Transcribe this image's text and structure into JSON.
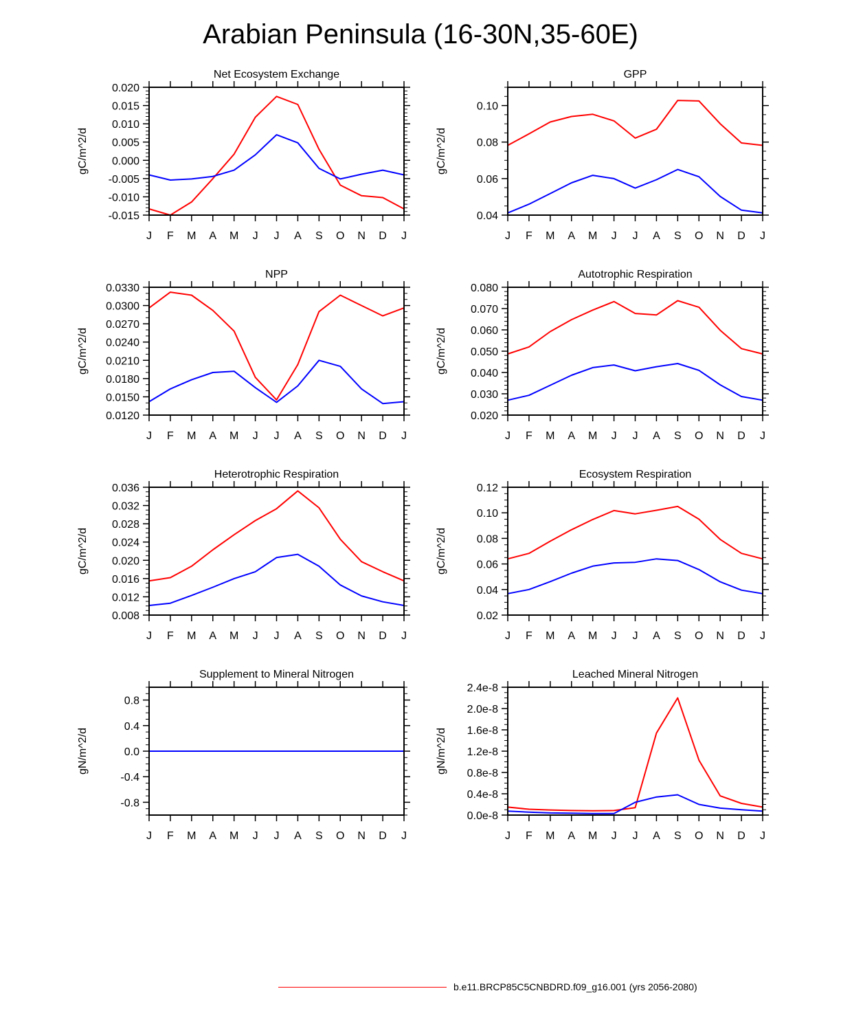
{
  "title": "Arabian Peninsula (16-30N,35-60E)",
  "legend": {
    "series_label": "b.e11.BRCP85C5CNBDRD.f09_g16.001 (yrs 2056-2080)",
    "color": "#ff0000"
  },
  "colors": {
    "red": "#ff0000",
    "blue": "#0000ff"
  },
  "chart_data": [
    {
      "type": "line",
      "title": "Net Ecosystem Exchange",
      "ylabel": "gC/m^2/d",
      "categories": [
        "J",
        "F",
        "M",
        "A",
        "M",
        "J",
        "J",
        "A",
        "S",
        "O",
        "N",
        "D",
        "J"
      ],
      "ylim": [
        -0.015,
        0.02
      ],
      "yticks": [
        -0.015,
        -0.01,
        -0.005,
        0.0,
        0.005,
        0.01,
        0.015,
        0.02
      ],
      "ytick_labels": [
        "-0.015",
        "-0.010",
        "-0.005",
        "0.000",
        "0.005",
        "0.010",
        "0.015",
        "0.020"
      ],
      "minor": 5,
      "series": [
        {
          "name": "red",
          "color": "#ff0000",
          "values": [
            -0.0133,
            -0.015,
            -0.0114,
            -0.005,
            0.0017,
            0.0118,
            0.0175,
            0.0153,
            0.003,
            -0.0068,
            -0.0097,
            -0.0102,
            -0.0133
          ]
        },
        {
          "name": "blue",
          "color": "#0000ff",
          "values": [
            -0.004,
            -0.0054,
            -0.0051,
            -0.0044,
            -0.0027,
            0.0015,
            0.007,
            0.0048,
            -0.0022,
            -0.0051,
            -0.0038,
            -0.0027,
            -0.004
          ]
        }
      ]
    },
    {
      "type": "line",
      "title": "GPP",
      "ylabel": "gC/m^2/d",
      "categories": [
        "J",
        "F",
        "M",
        "A",
        "M",
        "J",
        "J",
        "A",
        "S",
        "O",
        "N",
        "D",
        "J"
      ],
      "ylim": [
        0.04,
        0.11
      ],
      "yticks": [
        0.04,
        0.06,
        0.08,
        0.1
      ],
      "ytick_labels": [
        "0.04",
        "0.06",
        "0.08",
        "0.10"
      ],
      "minor": 4,
      "series": [
        {
          "name": "red",
          "color": "#ff0000",
          "values": [
            0.0782,
            0.0845,
            0.091,
            0.094,
            0.0952,
            0.0916,
            0.0822,
            0.087,
            0.1028,
            0.1025,
            0.09,
            0.0795,
            0.0782
          ]
        },
        {
          "name": "blue",
          "color": "#0000ff",
          "values": [
            0.0412,
            0.046,
            0.0518,
            0.0577,
            0.0618,
            0.06,
            0.0548,
            0.0594,
            0.065,
            0.061,
            0.0502,
            0.0427,
            0.0412
          ]
        }
      ]
    },
    {
      "type": "line",
      "title": "NPP",
      "ylabel": "gC/m^2/d",
      "categories": [
        "J",
        "F",
        "M",
        "A",
        "M",
        "J",
        "J",
        "A",
        "S",
        "O",
        "N",
        "D",
        "J"
      ],
      "ylim": [
        0.012,
        0.033
      ],
      "yticks": [
        0.012,
        0.015,
        0.018,
        0.021,
        0.024,
        0.027,
        0.03,
        0.033
      ],
      "ytick_labels": [
        "0.0120",
        "0.0150",
        "0.0180",
        "0.0210",
        "0.0240",
        "0.0270",
        "0.0300",
        "0.0330"
      ],
      "minor": 3,
      "series": [
        {
          "name": "red",
          "color": "#ff0000",
          "values": [
            0.0296,
            0.0322,
            0.0317,
            0.0292,
            0.0258,
            0.0182,
            0.0145,
            0.0203,
            0.029,
            0.0317,
            0.03,
            0.0283,
            0.0296
          ]
        },
        {
          "name": "blue",
          "color": "#0000ff",
          "values": [
            0.0142,
            0.0163,
            0.0178,
            0.019,
            0.0192,
            0.0165,
            0.0141,
            0.0168,
            0.021,
            0.02,
            0.0163,
            0.0139,
            0.0142
          ]
        }
      ]
    },
    {
      "type": "line",
      "title": "Autotrophic Respiration",
      "ylabel": "gC/m^2/d",
      "categories": [
        "J",
        "F",
        "M",
        "A",
        "M",
        "J",
        "J",
        "A",
        "S",
        "O",
        "N",
        "D",
        "J"
      ],
      "ylim": [
        0.02,
        0.08
      ],
      "yticks": [
        0.02,
        0.03,
        0.04,
        0.05,
        0.06,
        0.07,
        0.08
      ],
      "ytick_labels": [
        "0.020",
        "0.030",
        "0.040",
        "0.050",
        "0.060",
        "0.070",
        "0.080"
      ],
      "minor": 5,
      "series": [
        {
          "name": "red",
          "color": "#ff0000",
          "values": [
            0.0487,
            0.052,
            0.0592,
            0.0648,
            0.0693,
            0.0733,
            0.0677,
            0.067,
            0.0737,
            0.0706,
            0.0598,
            0.0512,
            0.0487
          ]
        },
        {
          "name": "blue",
          "color": "#0000ff",
          "values": [
            0.027,
            0.0293,
            0.034,
            0.0387,
            0.0423,
            0.0435,
            0.0408,
            0.0427,
            0.0442,
            0.041,
            0.0342,
            0.0287,
            0.027
          ]
        }
      ]
    },
    {
      "type": "line",
      "title": "Heterotrophic Respiration",
      "ylabel": "gC/m^2/d",
      "categories": [
        "J",
        "F",
        "M",
        "A",
        "M",
        "J",
        "J",
        "A",
        "S",
        "O",
        "N",
        "D",
        "J"
      ],
      "ylim": [
        0.008,
        0.036
      ],
      "yticks": [
        0.008,
        0.012,
        0.016,
        0.02,
        0.024,
        0.028,
        0.032,
        0.036
      ],
      "ytick_labels": [
        "0.008",
        "0.012",
        "0.016",
        "0.020",
        "0.024",
        "0.028",
        "0.032",
        "0.036"
      ],
      "minor": 4,
      "series": [
        {
          "name": "red",
          "color": "#ff0000",
          "values": [
            0.0155,
            0.0162,
            0.0187,
            0.0223,
            0.0256,
            0.0287,
            0.0313,
            0.0352,
            0.0315,
            0.0246,
            0.0197,
            0.0175,
            0.0155
          ]
        },
        {
          "name": "blue",
          "color": "#0000ff",
          "values": [
            0.0101,
            0.0106,
            0.0123,
            0.0141,
            0.016,
            0.0175,
            0.0206,
            0.0213,
            0.0187,
            0.0146,
            0.0122,
            0.0109,
            0.0101
          ]
        }
      ]
    },
    {
      "type": "line",
      "title": "Ecosystem Respiration",
      "ylabel": "gC/m^2/d",
      "categories": [
        "J",
        "F",
        "M",
        "A",
        "M",
        "J",
        "J",
        "A",
        "S",
        "O",
        "N",
        "D",
        "J"
      ],
      "ylim": [
        0.02,
        0.12
      ],
      "yticks": [
        0.02,
        0.04,
        0.06,
        0.08,
        0.1,
        0.12
      ],
      "ytick_labels": [
        "0.02",
        "0.04",
        "0.06",
        "0.08",
        "0.10",
        "0.12"
      ],
      "minor": 4,
      "series": [
        {
          "name": "red",
          "color": "#ff0000",
          "values": [
            0.064,
            0.0683,
            0.0778,
            0.0868,
            0.0948,
            0.1018,
            0.0992,
            0.102,
            0.105,
            0.095,
            0.0792,
            0.0683,
            0.064
          ]
        },
        {
          "name": "blue",
          "color": "#0000ff",
          "values": [
            0.0368,
            0.04,
            0.0462,
            0.0528,
            0.0583,
            0.0608,
            0.0613,
            0.064,
            0.0627,
            0.0556,
            0.046,
            0.0395,
            0.0368
          ]
        }
      ]
    },
    {
      "type": "line",
      "title": "Supplement to Mineral Nitrogen",
      "ylabel": "gN/m^2/d",
      "categories": [
        "J",
        "F",
        "M",
        "A",
        "M",
        "J",
        "J",
        "A",
        "S",
        "O",
        "N",
        "D",
        "J"
      ],
      "ylim": [
        -1.0,
        1.0
      ],
      "yticks": [
        -0.8,
        -0.4,
        0.0,
        0.4,
        0.8
      ],
      "ytick_labels": [
        "-0.8",
        "-0.4",
        "0.0",
        "0.4",
        "0.8"
      ],
      "minor": 4,
      "series": [
        {
          "name": "red",
          "color": "#ff0000",
          "values": [
            0,
            0,
            0,
            0,
            0,
            0,
            0,
            0,
            0,
            0,
            0,
            0,
            0
          ]
        },
        {
          "name": "blue",
          "color": "#0000ff",
          "values": [
            0,
            0,
            0,
            0,
            0,
            0,
            0,
            0,
            0,
            0,
            0,
            0,
            0
          ]
        }
      ]
    },
    {
      "type": "line",
      "title": "Leached Mineral Nitrogen",
      "ylabel": "gN/m^2/d",
      "categories": [
        "J",
        "F",
        "M",
        "A",
        "M",
        "J",
        "J",
        "A",
        "S",
        "O",
        "N",
        "D",
        "J"
      ],
      "ylim": [
        0,
        2.4e-08
      ],
      "yticks": [
        0,
        4e-09,
        8e-09,
        1.2e-08,
        1.6e-08,
        2e-08,
        2.4e-08
      ],
      "ytick_labels": [
        "0.0e-8",
        "0.4e-8",
        "0.8e-8",
        "1.2e-8",
        "1.6e-8",
        "2.0e-8",
        "2.4e-8"
      ],
      "minor": 4,
      "series": [
        {
          "name": "red",
          "color": "#ff0000",
          "values": [
            1.5e-09,
            1.1e-09,
            9.5e-10,
            8.5e-10,
            8e-10,
            8.5e-10,
            1.4e-09,
            1.54e-08,
            2.2e-08,
            1.03e-08,
            3.6e-09,
            2.2e-09,
            1.5e-09
          ]
        },
        {
          "name": "blue",
          "color": "#0000ff",
          "values": [
            7.5e-10,
            5.5e-10,
            4e-10,
            3.5e-10,
            3e-10,
            3e-10,
            2.4e-09,
            3.4e-09,
            3.8e-09,
            2e-09,
            1.3e-09,
            1e-09,
            7.5e-10
          ]
        }
      ]
    }
  ]
}
